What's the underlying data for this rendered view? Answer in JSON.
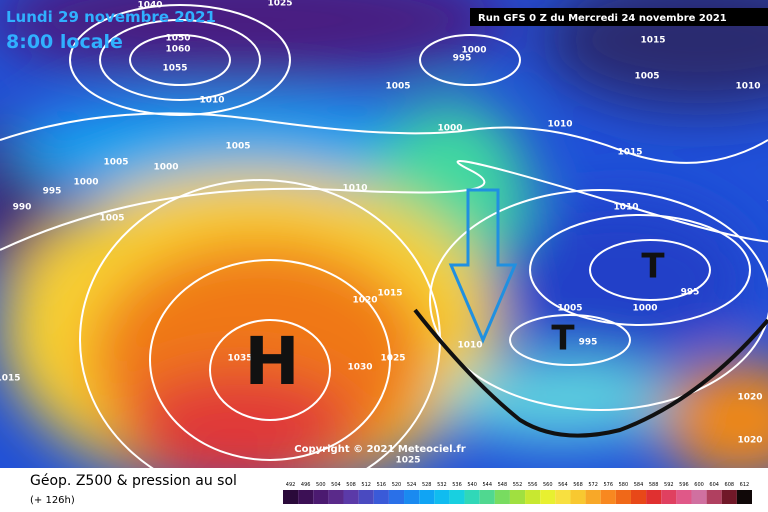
{
  "header": {
    "date": "Lundi 29 novembre 2021",
    "time": "8:00 locale",
    "run": "Run GFS 0 Z du Mercredi 24 novembre 2021"
  },
  "map": {
    "isobar_labels": [
      "1040",
      "1025",
      "1050",
      "1060",
      "1055",
      "1010",
      "1000",
      "995",
      "1015",
      "1005",
      "1010",
      "1005",
      "1000",
      "1010",
      "1015",
      "1005",
      "1005",
      "1000",
      "1000",
      "995",
      "990",
      "1005",
      "1010",
      "1010",
      "1015",
      "1020",
      "995",
      "1000",
      "1005",
      "995",
      "1010",
      "1035",
      "1030",
      "1025",
      "1015",
      "1020",
      "1020",
      "1025"
    ],
    "centers": [
      "H",
      "T",
      "T"
    ],
    "copyright": "Copyright © 2021 Meteociel.fr"
  },
  "legend": {
    "title": "Géop. Z500 & pression au sol",
    "lead": "(+ 126h)",
    "levels": [
      492,
      496,
      500,
      504,
      508,
      512,
      516,
      520,
      524,
      528,
      532,
      536,
      540,
      544,
      548,
      552,
      556,
      560,
      564,
      568,
      572,
      576,
      580,
      584,
      588,
      592,
      596,
      600,
      604,
      608,
      612
    ],
    "colors": [
      "#2a0a3a",
      "#3c1055",
      "#4b1a70",
      "#5a2a8a",
      "#5b3aa8",
      "#4a4ac0",
      "#3a5ad8",
      "#2a70e8",
      "#1a8af0",
      "#10a4f4",
      "#10bcf0",
      "#18d0e0",
      "#30d8b8",
      "#50d890",
      "#78dc60",
      "#a0e040",
      "#c8e830",
      "#e8f030",
      "#f8e040",
      "#f8c830",
      "#f8a828",
      "#f88820",
      "#f06818",
      "#e84818",
      "#e03030",
      "#e04060",
      "#e05888",
      "#d070a0",
      "#b04060",
      "#701828",
      "#100808"
    ]
  }
}
